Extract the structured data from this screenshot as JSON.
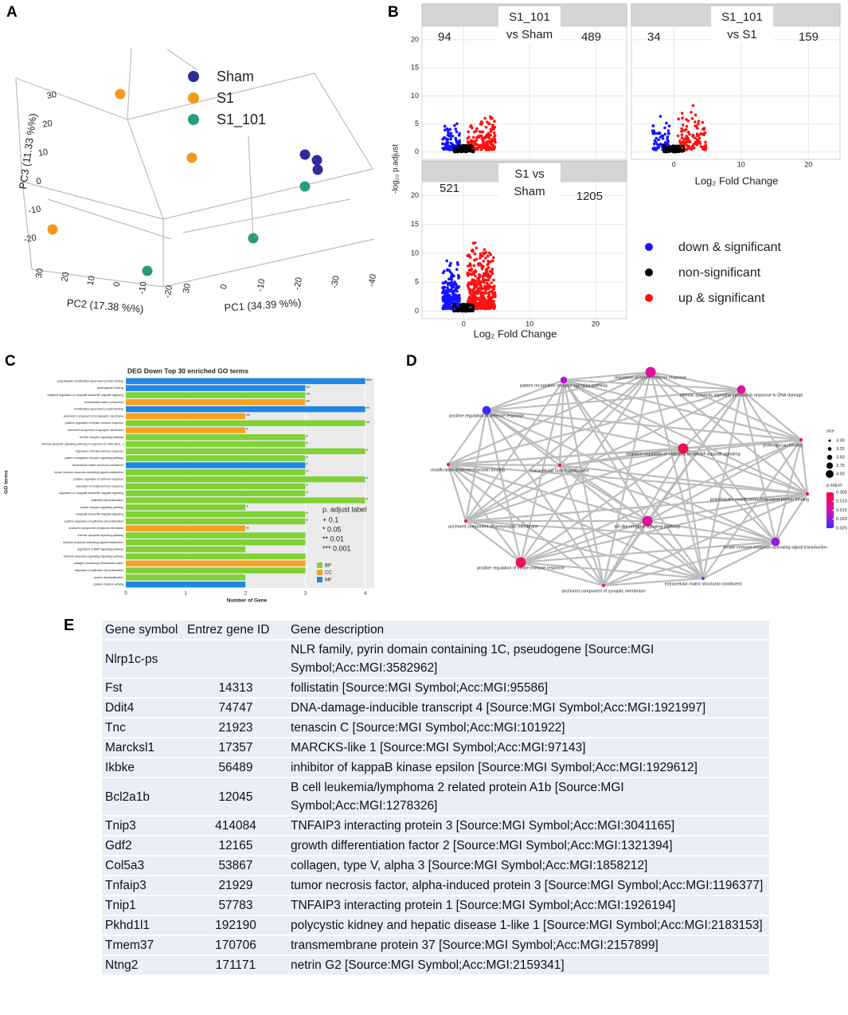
{
  "panels": {
    "A": {
      "label": "A",
      "legend": [
        {
          "name": "Sham",
          "color": "#2e2c9a"
        },
        {
          "name": "S1",
          "color": "#f39a1e"
        },
        {
          "name": "S1_101",
          "color": "#2a9b82"
        }
      ],
      "xlabel": "PC1 (34.39 %%)",
      "ylabel": "PC2 (17.38 %%)",
      "zlabel": "PC3 (11.33 %%)",
      "pc1_ticks": [
        30,
        0,
        -10,
        -20,
        -30,
        -40
      ],
      "pc2_ticks": [
        30,
        20,
        10,
        0,
        -10,
        -20
      ],
      "pc3_ticks": [
        30,
        20,
        10,
        0,
        -10,
        -20
      ]
    },
    "B": {
      "label": "B",
      "facets": [
        {
          "title": [
            "S1_101",
            "vs Sham"
          ],
          "down": 94,
          "up": 489
        },
        {
          "title": [
            "S1_101",
            "vs S1"
          ],
          "down": 34,
          "up": 159
        },
        {
          "title": [
            "S1 vs",
            "Sham"
          ],
          "down": 521,
          "up": 1205
        }
      ],
      "xlabel": "Log₂ Fold Change",
      "ylabel": "-log₁₀ p.adjust",
      "xlim": [
        -6.3,
        24.7
      ],
      "xticks": [
        0,
        10,
        20
      ],
      "ylim": [
        -1.3,
        22.4
      ],
      "yticks": [
        0,
        5,
        10,
        15,
        20
      ],
      "legend": [
        {
          "name": "down & significant",
          "color": "#1414ff"
        },
        {
          "name": "non-significant",
          "color": "#000000"
        },
        {
          "name": "up & significant",
          "color": "#ff1010"
        }
      ]
    },
    "C": {
      "label": "C",
      "type": "bar",
      "title": "DEG Down Top 30 enriched GO terms",
      "xlabel": "Number of Gene",
      "ylabel": "GO terms",
      "xlim": [
        0,
        4.15
      ],
      "xticks": [
        0,
        1,
        2,
        3,
        4
      ],
      "categories": [
        "polyubiquitin modification-dependent protein binding",
        "proteoglycan binding",
        "negative regulation of I-kappaB kinase/NF-kappaB signaling",
        "extracellular matrix component",
        "modification-dependent protein binding",
        "anchored component of presynaptic membrane",
        "positive regulation of innate immune response",
        "anchored component of synaptic membrane",
        "toll-like receptor signaling pathway",
        "intrinsic apoptotic signaling pathway in response to DNA dam(...)",
        "regulation of innate immune response",
        "pattern recognition receptor signaling pathway",
        "extracellular matrix structural constituent",
        "innate immune response-activating signal transduction",
        "positive regulation of defense response",
        "activation of innate immune response",
        "regulation of I-kappaB kinase/NF-kappaB signaling",
        "epithelial cell proliferation",
        "activin receptor signaling pathway",
        "I-kappaB kinase/NF-kappaB signaling",
        "positive regulation of epithelial cell proliferation",
        "anchored component of plasma membrane",
        "intrinsic apoptotic signaling pathway",
        "immune response-activating signal transduction",
        "regulation of BMP signaling pathway",
        "immune response-regulating signaling pathway",
        "collagen-containing extracellular matrix",
        "regulation of epithelial cell proliferation",
        "protein deubiquitination",
        "calcium channel activity"
      ],
      "values": [
        4,
        3,
        3,
        3,
        4,
        2,
        4,
        2,
        3,
        3,
        4,
        3,
        3,
        3,
        4,
        3,
        3,
        4,
        2,
        3,
        3,
        2,
        3,
        3,
        2,
        3,
        3,
        3,
        2,
        2
      ],
      "groups": [
        "MF",
        "MF",
        "BP",
        "CC",
        "MF",
        "CC",
        "BP",
        "CC",
        "BP",
        "BP",
        "BP",
        "BP",
        "MF",
        "BP",
        "BP",
        "BP",
        "BP",
        "BP",
        "BP",
        "BP",
        "BP",
        "CC",
        "BP",
        "BP",
        "BP",
        "BP",
        "CC",
        "BP",
        "BP",
        "MF"
      ],
      "significance": [
        "***",
        "**",
        "**",
        "**",
        "**",
        "**",
        "**",
        "*",
        "*",
        "*",
        "*",
        "*",
        "*",
        "*",
        "*",
        "*",
        "*",
        "*",
        "*",
        "*",
        "*",
        "+",
        null,
        null,
        null,
        null,
        null,
        null,
        null,
        null
      ],
      "padj_legend_title": "p. adjust label",
      "padj_legend": [
        "+ 0.1",
        "* 0.05",
        "** 0.01",
        "*** 0.001"
      ],
      "group_legend": [
        {
          "name": "BP",
          "color": "#7fd136"
        },
        {
          "name": "CC",
          "color": "#f7a11f"
        },
        {
          "name": "MF",
          "color": "#1e88e5"
        }
      ]
    },
    "D": {
      "label": "D",
      "nodes": [
        {
          "label": "regulation of innate immune response",
          "size": 4,
          "color": "#e0139a"
        },
        {
          "label": "pattern recognition receptor signaling pathway",
          "size": 3.5,
          "color": "#b514d6"
        },
        {
          "label": "intrinsic apoptotic signaling pathway in response to DNA damage",
          "size": 3.75,
          "color": "#e0139a"
        },
        {
          "label": "positive regulation of defense response",
          "size": 3.75,
          "color": "#3b2cff"
        },
        {
          "label": "proteoglycan binding",
          "size": 3,
          "color": "#f0103a"
        },
        {
          "label": "negative regulation of I-kappaB kinase/NF-kappaB signaling",
          "size": 4,
          "color": "#f0104a"
        },
        {
          "label": "modification-dependent protein binding",
          "size": 3,
          "color": "#f0104a"
        },
        {
          "label": "extracellular matrix component",
          "size": 3,
          "color": "#f0104a"
        },
        {
          "label": "polyubiquitin modification-dependent protein binding",
          "size": 3,
          "color": "#f0103a"
        },
        {
          "label": "anchored component of presynaptic membrane",
          "size": 3,
          "color": "#f0104a"
        },
        {
          "label": "toll-like receptor signaling pathway",
          "size": 4,
          "color": "#e0139a"
        },
        {
          "label": "innate immune response-activating signal transduction",
          "size": 3.75,
          "color": "#9b1ae0"
        },
        {
          "label": "positive regulation of innate immune response",
          "size": 4,
          "color": "#f0105a"
        },
        {
          "label": "extracellular matrix structural constituent",
          "size": 3,
          "color": "#9b1ae0"
        },
        {
          "label": "anchored component of synaptic membrane",
          "size": 3,
          "color": "#e0139a"
        }
      ],
      "size_title": "size",
      "size_legend": [
        {
          "value": 3,
          "label": "3.00"
        },
        {
          "value": 3.25,
          "label": "3.25"
        },
        {
          "value": 3.5,
          "label": "3.50"
        },
        {
          "value": 3.75,
          "label": "3.75"
        },
        {
          "value": 4,
          "label": "4.00"
        }
      ],
      "color_title": "p.adjust",
      "color_legend": [
        0.005,
        {
          "value": 0.01,
          "label": "0.010"
        },
        0.015,
        {
          "value": 0.02,
          "label": "0.020"
        },
        0.025
      ]
    },
    "E": {
      "label": "E",
      "header": [
        "Gene symbol",
        "Entrez gene ID",
        "Gene description"
      ],
      "rows": [
        [
          "Nlrp1c-ps",
          null,
          "NLR family, pyrin domain containing 1C, pseudogene [Source:MGI Symbol;Acc:MGI:3582962]"
        ],
        [
          "Fst",
          14313,
          "follistatin [Source:MGI Symbol;Acc:MGI:95586]"
        ],
        [
          "Ddit4",
          74747,
          "DNA-damage-inducible transcript 4 [Source:MGI Symbol;Acc:MGI:1921997]"
        ],
        [
          "Tnc",
          21923,
          "tenascin C [Source:MGI Symbol;Acc:MGI:101922]"
        ],
        [
          "Marcksl1",
          17357,
          "MARCKS-like 1 [Source:MGI Symbol;Acc:MGI:97143]"
        ],
        [
          "Ikbke",
          56489,
          "inhibitor of kappaB kinase epsilon [Source:MGI Symbol;Acc:MGI:1929612]"
        ],
        [
          "Bcl2a1b",
          12045,
          "B cell leukemia/lymphoma 2 related protein A1b [Source:MGI Symbol;Acc:MGI:1278326]"
        ],
        [
          "Tnip3",
          414084,
          "TNFAIP3 interacting protein 3 [Source:MGI Symbol;Acc:MGI:3041165]"
        ],
        [
          "Gdf2",
          12165,
          "growth differentiation factor 2 [Source:MGI Symbol;Acc:MGI:1321394]"
        ],
        [
          "Col5a3",
          53867,
          "collagen, type V, alpha 3 [Source:MGI Symbol;Acc:MGI:1858212]"
        ],
        [
          "Tnfaip3",
          21929,
          "tumor necrosis factor, alpha-induced protein 3 [Source:MGI Symbol;Acc:MGI:1196377]"
        ],
        [
          "Tnip1",
          57783,
          "TNFAIP3 interacting protein 1 [Source:MGI Symbol;Acc:MGI:1926194]"
        ],
        [
          "Pkhd1l1",
          192190,
          "polycystic kidney and hepatic disease 1-like 1 [Source:MGI Symbol;Acc:MGI:2183153]"
        ],
        [
          "Tmem37",
          170706,
          "transmembrane protein 37 [Source:MGI Symbol;Acc:MGI:2157899]"
        ],
        [
          "Ntng2",
          171171,
          "netrin G2 [Source:MGI Symbol;Acc:MGI:2159341]"
        ]
      ]
    }
  }
}
